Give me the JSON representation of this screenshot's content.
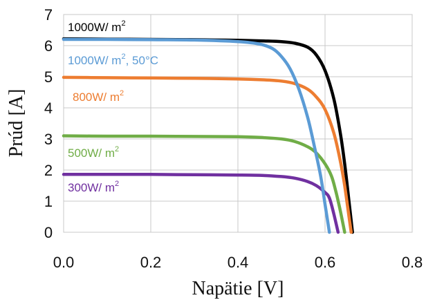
{
  "chart_data": {
    "type": "line",
    "xlabel": "Napätie [V]",
    "ylabel": "Prúd [A]",
    "xlim": [
      0.0,
      0.8
    ],
    "ylim": [
      0,
      7
    ],
    "x_ticks": [
      "0.0",
      "0.2",
      "0.4",
      "0.6",
      "0.8"
    ],
    "y_ticks": [
      "0",
      "1",
      "2",
      "3",
      "4",
      "5",
      "6",
      "7"
    ],
    "grid": true,
    "legend": "inline labels",
    "series": [
      {
        "name": "1000W/ m2",
        "label_main": "1000W/ m",
        "label_sup": "2",
        "label_suffix": "",
        "color": "#000000",
        "points": [
          [
            0.0,
            6.22
          ],
          [
            0.1,
            6.21
          ],
          [
            0.2,
            6.2
          ],
          [
            0.3,
            6.19
          ],
          [
            0.4,
            6.17
          ],
          [
            0.46,
            6.15
          ],
          [
            0.5,
            6.13
          ],
          [
            0.53,
            6.08
          ],
          [
            0.56,
            5.95
          ],
          [
            0.58,
            5.7
          ],
          [
            0.6,
            5.2
          ],
          [
            0.62,
            4.3
          ],
          [
            0.635,
            3.2
          ],
          [
            0.645,
            2.2
          ],
          [
            0.655,
            1.0
          ],
          [
            0.663,
            0.0
          ]
        ]
      },
      {
        "name": "1000W/ m2, 50°C",
        "label_main": "1000W/ m",
        "label_sup": "2",
        "label_suffix": ", 50°C",
        "color": "#5b9bd5",
        "points": [
          [
            0.0,
            6.2
          ],
          [
            0.1,
            6.2
          ],
          [
            0.2,
            6.19
          ],
          [
            0.3,
            6.18
          ],
          [
            0.4,
            6.13
          ],
          [
            0.45,
            6.05
          ],
          [
            0.48,
            5.9
          ],
          [
            0.5,
            5.65
          ],
          [
            0.52,
            5.25
          ],
          [
            0.54,
            4.6
          ],
          [
            0.56,
            3.7
          ],
          [
            0.575,
            2.8
          ],
          [
            0.59,
            1.8
          ],
          [
            0.6,
            0.9
          ],
          [
            0.61,
            0.0
          ]
        ]
      },
      {
        "name": "800W/ m2",
        "label_main": "800W/ m",
        "label_sup": "2",
        "label_suffix": "",
        "color": "#ed7d31",
        "points": [
          [
            0.0,
            4.98
          ],
          [
            0.1,
            4.97
          ],
          [
            0.2,
            4.96
          ],
          [
            0.3,
            4.95
          ],
          [
            0.4,
            4.93
          ],
          [
            0.46,
            4.9
          ],
          [
            0.5,
            4.86
          ],
          [
            0.53,
            4.78
          ],
          [
            0.56,
            4.6
          ],
          [
            0.58,
            4.35
          ],
          [
            0.6,
            3.95
          ],
          [
            0.62,
            3.2
          ],
          [
            0.635,
            2.3
          ],
          [
            0.645,
            1.5
          ],
          [
            0.652,
            0.8
          ],
          [
            0.66,
            0.0
          ]
        ]
      },
      {
        "name": "500W/ m2",
        "label_main": "500W/ m",
        "label_sup": "2",
        "label_suffix": "",
        "color": "#70ad47",
        "points": [
          [
            0.0,
            3.1
          ],
          [
            0.1,
            3.09
          ],
          [
            0.2,
            3.09
          ],
          [
            0.3,
            3.08
          ],
          [
            0.4,
            3.07
          ],
          [
            0.45,
            3.05
          ],
          [
            0.5,
            3.0
          ],
          [
            0.53,
            2.92
          ],
          [
            0.56,
            2.75
          ],
          [
            0.58,
            2.55
          ],
          [
            0.6,
            2.2
          ],
          [
            0.615,
            1.8
          ],
          [
            0.625,
            1.3
          ],
          [
            0.635,
            0.7
          ],
          [
            0.645,
            0.0
          ]
        ]
      },
      {
        "name": "300W/ m2",
        "label_main": "300W/ m",
        "label_sup": "2",
        "label_suffix": "",
        "color": "#7030a0",
        "points": [
          [
            0.0,
            1.86
          ],
          [
            0.1,
            1.86
          ],
          [
            0.2,
            1.86
          ],
          [
            0.3,
            1.85
          ],
          [
            0.4,
            1.84
          ],
          [
            0.45,
            1.83
          ],
          [
            0.5,
            1.79
          ],
          [
            0.53,
            1.74
          ],
          [
            0.56,
            1.63
          ],
          [
            0.58,
            1.5
          ],
          [
            0.6,
            1.28
          ],
          [
            0.61,
            1.1
          ],
          [
            0.62,
            0.6
          ],
          [
            0.63,
            0.0
          ]
        ]
      }
    ]
  }
}
